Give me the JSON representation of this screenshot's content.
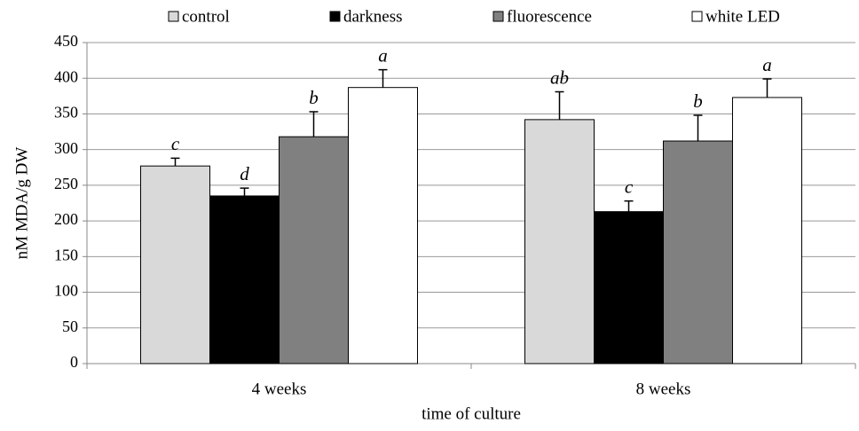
{
  "chart_data": {
    "type": "bar",
    "categories": [
      "4 weeks",
      "8 weeks"
    ],
    "x_label": "time of culture",
    "y_label": "nM MDA/g DW",
    "series": [
      {
        "name": "control",
        "color": "#d9d9d9",
        "values": [
          277,
          342
        ],
        "errors": [
          11,
          39
        ],
        "labels": [
          "c",
          "ab"
        ]
      },
      {
        "name": "darkness",
        "color": "#000000",
        "values": [
          235,
          213
        ],
        "errors": [
          11,
          15
        ],
        "labels": [
          "d",
          "c"
        ]
      },
      {
        "name": "fluorescence",
        "color": "#808080",
        "values": [
          318,
          312
        ],
        "errors": [
          35,
          36
        ],
        "labels": [
          "b",
          "b"
        ]
      },
      {
        "name": "white LED",
        "color": "#ffffff",
        "values": [
          387,
          373
        ],
        "errors": [
          25,
          26
        ],
        "labels": [
          "a",
          "a"
        ]
      }
    ],
    "ylim": [
      0,
      450
    ],
    "yticks": [
      0,
      50,
      100,
      150,
      200,
      250,
      300,
      350,
      400,
      450
    ],
    "grid": true
  }
}
